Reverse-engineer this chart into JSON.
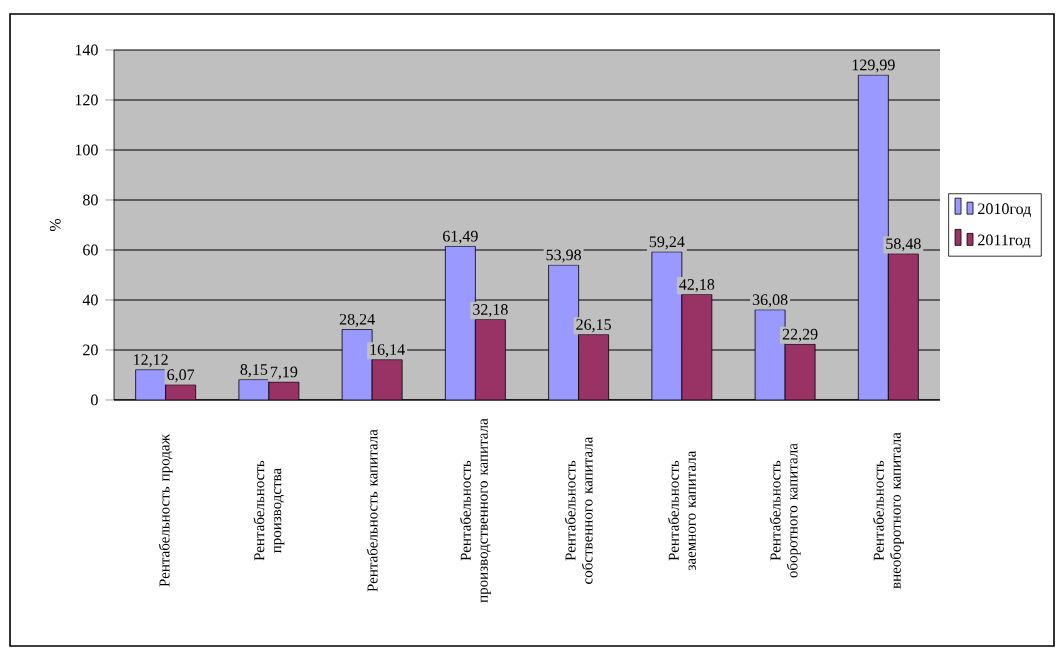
{
  "chart_data": {
    "type": "bar",
    "ylabel": "%",
    "categories": [
      "Рентабельность продаж",
      "Рентабельность производства",
      "Рентабельность капитала",
      "Рентабельность производственного капитала",
      "Рентабельность собственного капитала",
      "Рентабельность заемного капитала",
      "Рентабельность оборотного капитала",
      "Рентабельность внеоборотного капитала"
    ],
    "series": [
      {
        "name": "2010год",
        "color": "#9999ff",
        "values": [
          12.12,
          8.15,
          28.24,
          61.49,
          53.98,
          59.24,
          36.08,
          129.99
        ],
        "value_labels": [
          "12,12",
          "8,15",
          "28,24",
          "61,49",
          "53,98",
          "59,24",
          "36,08",
          "129,99"
        ]
      },
      {
        "name": "2011год",
        "color": "#993366",
        "values": [
          6.07,
          7.19,
          16.14,
          32.18,
          26.15,
          42.18,
          22.29,
          58.48
        ],
        "value_labels": [
          "6,07",
          "7,19",
          "16,14",
          "32,18",
          "26,15",
          "42,18",
          "22,29",
          "58,48"
        ]
      }
    ],
    "ylim": [
      0,
      140
    ],
    "yticks": [
      0,
      20,
      40,
      60,
      80,
      100,
      120,
      140
    ],
    "grid": "y",
    "legend": "right"
  }
}
